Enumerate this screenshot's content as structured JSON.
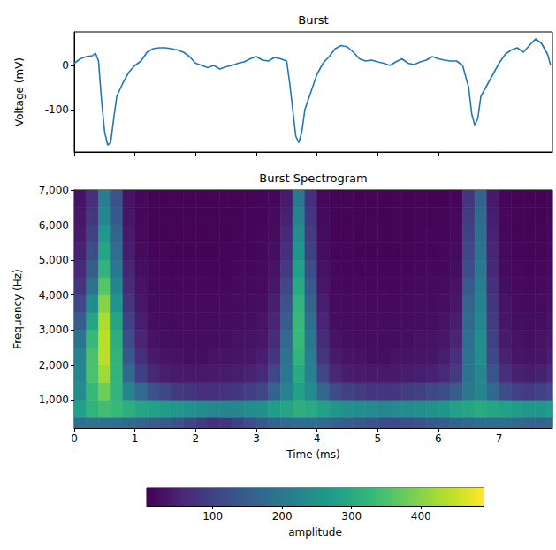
{
  "chart_data": [
    {
      "type": "line",
      "title": "Burst",
      "ylabel": "Voltage (mV)",
      "color": "#1f77b4",
      "x": [
        0,
        0.1,
        0.2,
        0.3,
        0.35,
        0.4,
        0.45,
        0.5,
        0.55,
        0.6,
        0.65,
        0.7,
        0.8,
        0.9,
        1.0,
        1.1,
        1.2,
        1.3,
        1.4,
        1.5,
        1.6,
        1.7,
        1.8,
        1.9,
        2.0,
        2.1,
        2.2,
        2.3,
        2.4,
        2.5,
        2.6,
        2.7,
        2.8,
        2.9,
        3.0,
        3.1,
        3.2,
        3.3,
        3.4,
        3.5,
        3.55,
        3.6,
        3.65,
        3.7,
        3.75,
        3.8,
        3.9,
        4.0,
        4.1,
        4.2,
        4.3,
        4.4,
        4.5,
        4.6,
        4.7,
        4.8,
        4.9,
        5.0,
        5.1,
        5.2,
        5.3,
        5.4,
        5.5,
        5.6,
        5.7,
        5.8,
        5.9,
        6.0,
        6.1,
        6.2,
        6.3,
        6.4,
        6.5,
        6.55,
        6.6,
        6.65,
        6.7,
        6.8,
        6.9,
        7.0,
        7.1,
        7.2,
        7.3,
        7.4,
        7.5,
        7.6,
        7.7,
        7.8,
        7.85
      ],
      "values": [
        5,
        15,
        20,
        22,
        28,
        10,
        -80,
        -150,
        -180,
        -175,
        -120,
        -70,
        -40,
        -15,
        0,
        10,
        30,
        38,
        40,
        40,
        38,
        35,
        30,
        20,
        5,
        0,
        -5,
        0,
        -8,
        -3,
        0,
        5,
        8,
        15,
        20,
        12,
        10,
        18,
        15,
        10,
        -40,
        -100,
        -160,
        -175,
        -150,
        -100,
        -60,
        -20,
        5,
        20,
        38,
        45,
        42,
        30,
        15,
        10,
        12,
        8,
        5,
        0,
        8,
        15,
        5,
        2,
        8,
        12,
        20,
        15,
        12,
        10,
        10,
        0,
        -50,
        -110,
        -135,
        -120,
        -70,
        -45,
        -20,
        5,
        25,
        35,
        40,
        30,
        45,
        60,
        50,
        25,
        0
      ],
      "xlim": [
        0,
        7.88
      ],
      "xticks": [
        0,
        1,
        2,
        3,
        4,
        5,
        6,
        7
      ],
      "ylim": [
        -196,
        76
      ],
      "yticks": [
        -100,
        0
      ],
      "tick_labels": "y"
    },
    {
      "type": "heatmap",
      "title": "Burst Spectrogram",
      "xlabel": "Time (ms)",
      "ylabel": "Frequency (Hz)",
      "xlim": [
        0,
        7.88
      ],
      "xticks": [
        0,
        1,
        2,
        3,
        4,
        5,
        6,
        7
      ],
      "ylim": [
        200,
        7000
      ],
      "yticks": [
        1000,
        2000,
        3000,
        4000,
        5000,
        6000,
        7000
      ],
      "time_edges": [
        0,
        0.2,
        0.4,
        0.6,
        0.8,
        1.0,
        1.2,
        1.4,
        1.6,
        1.8,
        2.0,
        2.2,
        2.4,
        2.6,
        2.8,
        3.0,
        3.2,
        3.4,
        3.6,
        3.8,
        4.0,
        4.2,
        4.4,
        4.6,
        4.8,
        5.0,
        5.2,
        5.4,
        5.6,
        5.8,
        6.0,
        6.2,
        6.4,
        6.6,
        6.8,
        7.0,
        7.2,
        7.4,
        7.6,
        7.8,
        8.0
      ],
      "frequency_edges": [
        200,
        500,
        1000,
        1500,
        2000,
        2500,
        3000,
        3500,
        4000,
        4500,
        5000,
        5500,
        6000,
        6500,
        7000
      ],
      "amplitude": [
        [
          180,
          190,
          190,
          180,
          170,
          160,
          150,
          140,
          130,
          110,
          90,
          70,
          80,
          100,
          120,
          140,
          160,
          170,
          180,
          180,
          170,
          160,
          150,
          140,
          130,
          120,
          115,
          120,
          130,
          140,
          150,
          160,
          170,
          180,
          180,
          180,
          170,
          160,
          160,
          160
        ],
        [
          280,
          320,
          340,
          330,
          310,
          290,
          280,
          270,
          260,
          250,
          240,
          230,
          230,
          230,
          240,
          250,
          270,
          290,
          310,
          300,
          280,
          260,
          250,
          240,
          235,
          230,
          235,
          240,
          245,
          250,
          260,
          280,
          290,
          300,
          290,
          280,
          270,
          260,
          260,
          270
        ],
        [
          240,
          330,
          380,
          320,
          230,
          170,
          130,
          110,
          90,
          80,
          70,
          70,
          75,
          85,
          95,
          110,
          160,
          220,
          280,
          240,
          170,
          120,
          100,
          90,
          80,
          80,
          85,
          95,
          100,
          110,
          120,
          150,
          200,
          230,
          170,
          120,
          100,
          90,
          100,
          110
        ],
        [
          230,
          350,
          420,
          320,
          170,
          100,
          60,
          45,
          40,
          38,
          38,
          40,
          42,
          45,
          50,
          60,
          110,
          200,
          300,
          220,
          110,
          60,
          45,
          40,
          38,
          38,
          40,
          42,
          45,
          50,
          60,
          90,
          190,
          230,
          130,
          70,
          50,
          45,
          50,
          60
        ],
        [
          220,
          350,
          440,
          320,
          140,
          70,
          40,
          30,
          28,
          25,
          25,
          28,
          30,
          32,
          35,
          45,
          80,
          190,
          320,
          210,
          80,
          40,
          30,
          28,
          25,
          25,
          28,
          30,
          32,
          35,
          45,
          70,
          190,
          240,
          110,
          50,
          35,
          30,
          35,
          45
        ],
        [
          190,
          330,
          440,
          310,
          120,
          55,
          30,
          25,
          22,
          22,
          22,
          22,
          25,
          28,
          30,
          35,
          65,
          170,
          330,
          200,
          65,
          30,
          25,
          22,
          22,
          22,
          22,
          25,
          28,
          30,
          35,
          55,
          180,
          240,
          100,
          40,
          30,
          25,
          30,
          35
        ],
        [
          150,
          290,
          430,
          290,
          100,
          45,
          25,
          20,
          20,
          20,
          20,
          20,
          20,
          22,
          25,
          30,
          55,
          150,
          330,
          180,
          55,
          25,
          20,
          20,
          20,
          20,
          20,
          22,
          22,
          25,
          30,
          45,
          170,
          230,
          90,
          35,
          25,
          22,
          25,
          30
        ],
        [
          110,
          240,
          400,
          260,
          80,
          35,
          20,
          18,
          18,
          18,
          18,
          18,
          18,
          20,
          20,
          25,
          45,
          130,
          320,
          160,
          45,
          20,
          18,
          18,
          18,
          18,
          18,
          18,
          20,
          20,
          25,
          35,
          160,
          220,
          80,
          30,
          20,
          18,
          20,
          25
        ],
        [
          80,
          190,
          360,
          230,
          65,
          30,
          18,
          15,
          15,
          15,
          15,
          15,
          15,
          18,
          18,
          20,
          35,
          110,
          300,
          140,
          35,
          18,
          15,
          15,
          15,
          15,
          15,
          15,
          18,
          18,
          20,
          30,
          140,
          210,
          70,
          25,
          18,
          15,
          18,
          20
        ],
        [
          60,
          150,
          320,
          200,
          55,
          25,
          15,
          12,
          12,
          12,
          12,
          12,
          12,
          15,
          15,
          18,
          30,
          90,
          280,
          120,
          30,
          15,
          12,
          12,
          12,
          12,
          12,
          12,
          15,
          15,
          15,
          25,
          120,
          200,
          60,
          20,
          15,
          12,
          15,
          18
        ],
        [
          50,
          120,
          290,
          180,
          45,
          20,
          12,
          12,
          10,
          10,
          10,
          10,
          12,
          12,
          12,
          15,
          25,
          70,
          260,
          100,
          25,
          12,
          12,
          10,
          10,
          10,
          10,
          12,
          12,
          12,
          15,
          20,
          110,
          190,
          55,
          18,
          12,
          10,
          12,
          15
        ],
        [
          40,
          100,
          260,
          160,
          40,
          18,
          10,
          10,
          10,
          10,
          10,
          10,
          10,
          12,
          12,
          15,
          20,
          60,
          240,
          90,
          20,
          12,
          10,
          10,
          10,
          10,
          10,
          10,
          12,
          12,
          12,
          18,
          100,
          180,
          50,
          15,
          10,
          10,
          12,
          12
        ],
        [
          35,
          80,
          230,
          140,
          35,
          15,
          10,
          10,
          10,
          10,
          10,
          10,
          10,
          10,
          12,
          12,
          18,
          50,
          220,
          80,
          18,
          10,
          10,
          10,
          10,
          10,
          10,
          10,
          10,
          10,
          12,
          15,
          90,
          170,
          45,
          15,
          10,
          10,
          10,
          12
        ],
        [
          30,
          70,
          210,
          130,
          30,
          15,
          10,
          10,
          10,
          10,
          10,
          10,
          10,
          10,
          10,
          12,
          15,
          40,
          200,
          70,
          15,
          10,
          10,
          10,
          10,
          10,
          10,
          10,
          10,
          10,
          10,
          12,
          80,
          160,
          40,
          12,
          10,
          10,
          10,
          10
        ]
      ],
      "colorbar": {
        "label": "amplitude",
        "range": [
          5,
          490
        ],
        "ticks": [
          100,
          200,
          300,
          400
        ]
      }
    }
  ]
}
